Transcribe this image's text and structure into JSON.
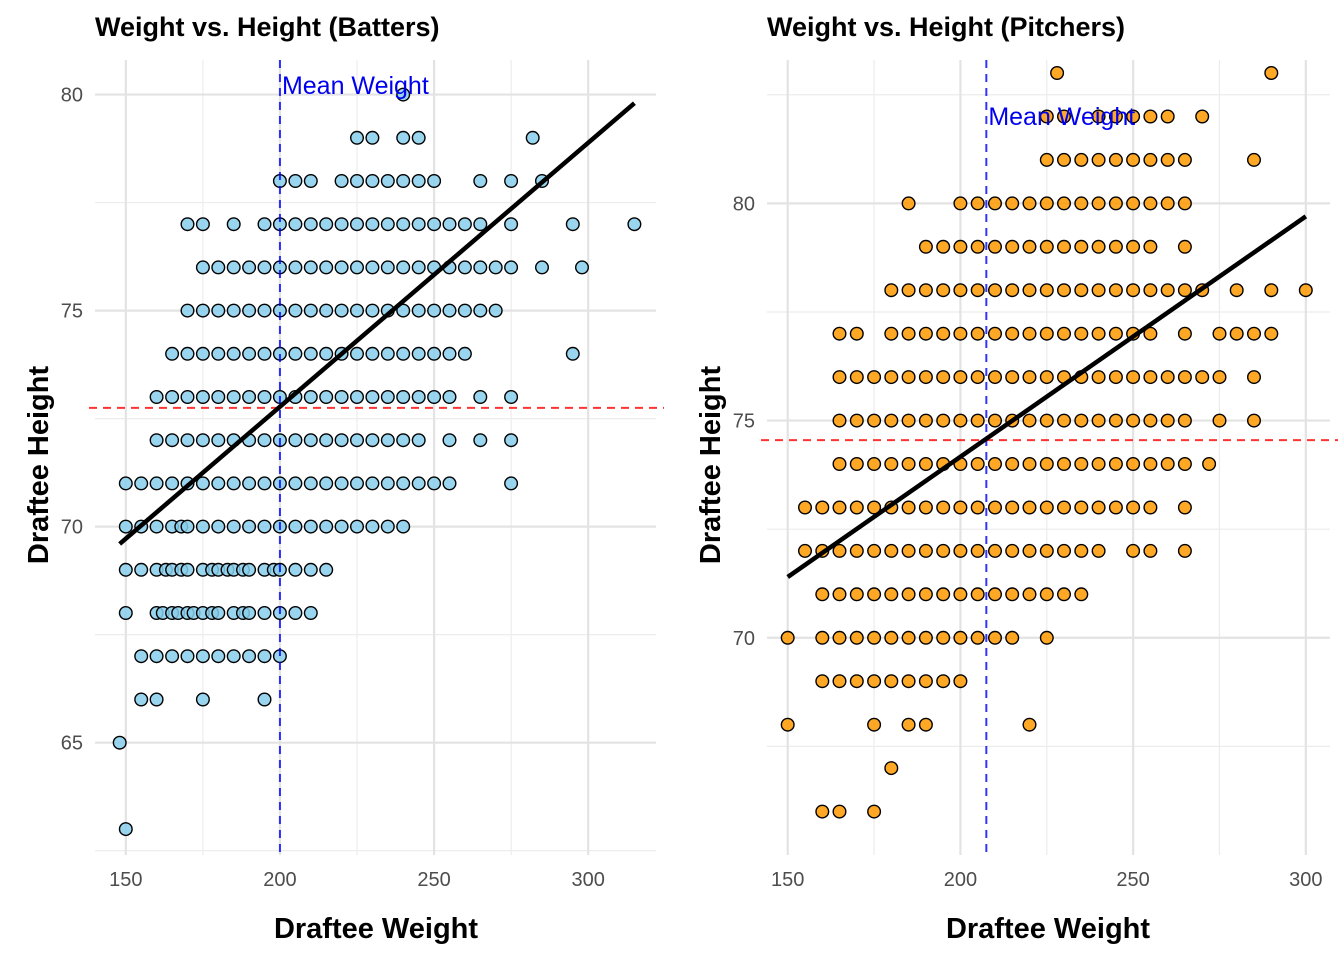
{
  "chart_data": [
    {
      "type": "scatter",
      "title": "Weight vs. Height (Batters)",
      "xlabel": "Draftee Weight",
      "ylabel": "Draftee Height",
      "xlim": [
        140,
        322
      ],
      "ylim": [
        62.4,
        80.8
      ],
      "x_ticks": [
        150,
        200,
        250,
        300
      ],
      "x_minor_ticks": [
        175,
        225,
        275
      ],
      "y_ticks": [
        65,
        70,
        75,
        80
      ],
      "y_minor_ticks": [
        62.5,
        67.5,
        72.5,
        77.5
      ],
      "grid": true,
      "point_fill": "#87ceeb",
      "point_stroke": "#000000",
      "mean_weight": 200,
      "mean_height": 72.75,
      "mean_label": "Mean Weight",
      "mean_weight_color": "#0000ff",
      "mean_height_color": "#ff0000",
      "trend_line": [
        [
          148,
          69.6
        ],
        [
          315,
          79.8
        ]
      ],
      "rows": [
        {
          "y": 63,
          "x": [
            150
          ]
        },
        {
          "y": 65,
          "x": [
            148
          ]
        },
        {
          "y": 66,
          "x": [
            155,
            160,
            175,
            195
          ]
        },
        {
          "y": 67,
          "x": [
            155,
            160,
            165,
            170,
            175,
            180,
            185,
            190,
            195,
            200
          ]
        },
        {
          "y": 68,
          "x": [
            150,
            160,
            162,
            165,
            167,
            170,
            172,
            175,
            178,
            180,
            185,
            188,
            190,
            195,
            200,
            205,
            210
          ]
        },
        {
          "y": 69,
          "x": [
            150,
            155,
            160,
            163,
            165,
            168,
            170,
            175,
            178,
            180,
            183,
            185,
            188,
            190,
            195,
            198,
            200,
            205,
            210,
            215
          ]
        },
        {
          "y": 70,
          "x": [
            150,
            155,
            160,
            165,
            168,
            170,
            175,
            180,
            185,
            190,
            195,
            200,
            205,
            210,
            215,
            220,
            225,
            230,
            235,
            240
          ]
        },
        {
          "y": 71,
          "x": [
            150,
            155,
            160,
            165,
            170,
            175,
            180,
            185,
            190,
            195,
            200,
            205,
            210,
            215,
            220,
            225,
            230,
            235,
            240,
            245,
            250,
            255,
            275
          ]
        },
        {
          "y": 72,
          "x": [
            160,
            165,
            170,
            175,
            180,
            185,
            190,
            195,
            200,
            205,
            210,
            215,
            220,
            225,
            230,
            235,
            240,
            245,
            255,
            265,
            275
          ]
        },
        {
          "y": 73,
          "x": [
            160,
            165,
            170,
            175,
            180,
            185,
            190,
            195,
            200,
            205,
            210,
            215,
            220,
            225,
            230,
            235,
            240,
            245,
            250,
            255,
            265,
            275
          ]
        },
        {
          "y": 74,
          "x": [
            165,
            170,
            175,
            180,
            185,
            190,
            195,
            200,
            205,
            210,
            215,
            220,
            225,
            230,
            235,
            240,
            245,
            250,
            255,
            260,
            295
          ]
        },
        {
          "y": 75,
          "x": [
            170,
            175,
            180,
            185,
            190,
            195,
            200,
            205,
            210,
            215,
            220,
            225,
            230,
            235,
            240,
            245,
            250,
            255,
            260,
            265,
            270
          ]
        },
        {
          "y": 76,
          "x": [
            175,
            180,
            185,
            190,
            195,
            200,
            205,
            210,
            215,
            220,
            225,
            230,
            235,
            240,
            245,
            250,
            255,
            260,
            265,
            270,
            275,
            285,
            298
          ]
        },
        {
          "y": 77,
          "x": [
            170,
            175,
            185,
            195,
            200,
            205,
            210,
            215,
            220,
            225,
            230,
            235,
            240,
            245,
            250,
            255,
            260,
            265,
            275,
            295,
            315
          ]
        },
        {
          "y": 78,
          "x": [
            200,
            205,
            210,
            220,
            225,
            230,
            235,
            240,
            245,
            250,
            265,
            275,
            285
          ]
        },
        {
          "y": 79,
          "x": [
            225,
            230,
            240,
            245,
            282
          ]
        },
        {
          "y": 80,
          "x": [
            240
          ]
        }
      ]
    },
    {
      "type": "scatter",
      "title": "Weight vs. Height (Pitchers)",
      "xlabel": "Draftee Weight",
      "ylabel": "Draftee Height",
      "xlim": [
        144,
        307
      ],
      "ylim": [
        65,
        83.3
      ],
      "x_ticks": [
        150,
        200,
        250,
        300
      ],
      "x_minor_ticks": [
        175,
        225,
        275
      ],
      "y_ticks": [
        70,
        75,
        80
      ],
      "y_minor_ticks": [
        67.5,
        72.5,
        77.5,
        82.5
      ],
      "grid": true,
      "point_fill": "#ff9900",
      "point_stroke": "#000000",
      "mean_weight": 207.5,
      "mean_height": 74.55,
      "mean_label": "Mean Weight",
      "mean_weight_color": "#0000ff",
      "mean_height_color": "#ff0000",
      "trend_line": [
        [
          150,
          71.4
        ],
        [
          300,
          79.7
        ]
      ],
      "rows": [
        {
          "y": 66,
          "x": [
            160,
            165,
            175
          ]
        },
        {
          "y": 67,
          "x": [
            180
          ]
        },
        {
          "y": 68,
          "x": [
            150,
            175,
            185,
            190,
            220
          ]
        },
        {
          "y": 69,
          "x": [
            160,
            165,
            170,
            175,
            180,
            185,
            190,
            195,
            200
          ]
        },
        {
          "y": 70,
          "x": [
            150,
            160,
            165,
            170,
            175,
            180,
            185,
            190,
            195,
            200,
            205,
            210,
            215,
            225
          ]
        },
        {
          "y": 71,
          "x": [
            160,
            165,
            170,
            175,
            180,
            185,
            190,
            195,
            200,
            205,
            210,
            215,
            220,
            225,
            230,
            235
          ]
        },
        {
          "y": 72,
          "x": [
            155,
            160,
            165,
            170,
            175,
            180,
            185,
            190,
            195,
            200,
            205,
            210,
            215,
            220,
            225,
            230,
            235,
            240,
            250,
            255,
            265
          ]
        },
        {
          "y": 73,
          "x": [
            155,
            160,
            165,
            170,
            175,
            180,
            185,
            190,
            195,
            200,
            205,
            210,
            215,
            220,
            225,
            230,
            235,
            240,
            245,
            250,
            255,
            265
          ]
        },
        {
          "y": 74,
          "x": [
            165,
            170,
            175,
            180,
            185,
            190,
            195,
            200,
            205,
            210,
            215,
            220,
            225,
            230,
            235,
            240,
            245,
            250,
            255,
            260,
            265,
            272
          ]
        },
        {
          "y": 75,
          "x": [
            165,
            170,
            175,
            180,
            185,
            190,
            195,
            200,
            205,
            210,
            215,
            220,
            225,
            230,
            235,
            240,
            245,
            250,
            255,
            260,
            265,
            275,
            285
          ]
        },
        {
          "y": 76,
          "x": [
            165,
            170,
            175,
            180,
            185,
            190,
            195,
            200,
            205,
            210,
            215,
            220,
            225,
            230,
            235,
            240,
            245,
            250,
            255,
            260,
            265,
            270,
            275,
            285
          ]
        },
        {
          "y": 77,
          "x": [
            165,
            170,
            180,
            185,
            190,
            195,
            200,
            205,
            210,
            215,
            220,
            225,
            230,
            235,
            240,
            245,
            250,
            255,
            265,
            275,
            280,
            285,
            290
          ]
        },
        {
          "y": 78,
          "x": [
            180,
            185,
            190,
            195,
            200,
            205,
            210,
            215,
            220,
            225,
            230,
            235,
            240,
            245,
            250,
            255,
            260,
            265,
            270,
            280,
            290,
            300
          ]
        },
        {
          "y": 79,
          "x": [
            190,
            195,
            200,
            205,
            210,
            215,
            220,
            225,
            230,
            235,
            240,
            245,
            250,
            255,
            265
          ]
        },
        {
          "y": 80,
          "x": [
            185,
            200,
            205,
            210,
            215,
            220,
            225,
            230,
            235,
            240,
            245,
            250,
            255,
            260,
            265
          ]
        },
        {
          "y": 81,
          "x": [
            225,
            230,
            235,
            240,
            245,
            250,
            255,
            260,
            265,
            285
          ]
        },
        {
          "y": 82,
          "x": [
            225,
            230,
            240,
            245,
            250,
            255,
            260,
            270
          ]
        },
        {
          "y": 83,
          "x": [
            228,
            290
          ]
        }
      ]
    }
  ]
}
